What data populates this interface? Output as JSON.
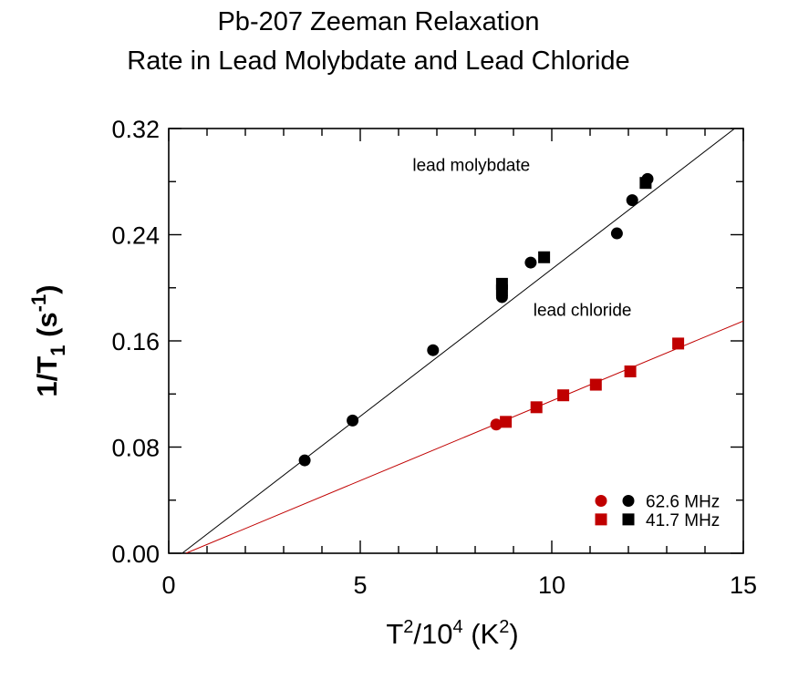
{
  "colors": {
    "molybdate": "#000000",
    "chloride": "#c00000",
    "axis": "#000000"
  },
  "chart_data": {
    "type": "scatter",
    "title_lines": [
      "Pb-207 Zeeman Relaxation",
      "Rate in Lead Molybdate and Lead Chloride"
    ],
    "xlabel": {
      "base": "T",
      "sup": "2",
      "mid": "/10",
      "sup2": "4",
      "tail_open": " (K",
      "sup3": "2",
      "tail_close": ")"
    },
    "ylabel": {
      "base": "1/T",
      "sub": "1",
      "mid": " (s",
      "sup": "-1",
      "tail": ")"
    },
    "xlim": [
      0,
      15
    ],
    "ylim": [
      0,
      0.32
    ],
    "xticks": [
      0,
      5,
      10,
      15
    ],
    "yticks": [
      0.0,
      0.08,
      0.16,
      0.24,
      0.32
    ],
    "xtick_labels": [
      "0",
      "5",
      "10",
      "15"
    ],
    "ytick_labels": [
      "0.00",
      "0.08",
      "0.16",
      "0.24",
      "0.32"
    ],
    "x_minor_step": 1,
    "y_minor_step": 0.04,
    "annotations": [
      {
        "text": "lead molybdate",
        "x": 7.9,
        "y": 0.288
      },
      {
        "text": "lead chloride",
        "x": 10.8,
        "y": 0.179
      }
    ],
    "series": [
      {
        "material": "molybdate",
        "marker": "circle",
        "x": [
          3.55,
          4.8,
          6.9,
          8.7,
          9.45,
          11.7,
          12.1,
          12.5
        ],
        "y": [
          0.07,
          0.1,
          0.153,
          0.193,
          0.219,
          0.241,
          0.266,
          0.282
        ]
      },
      {
        "material": "molybdate",
        "marker": "square",
        "x": [
          8.7,
          8.7,
          9.8,
          12.45
        ],
        "y": [
          0.203,
          0.198,
          0.223,
          0.279
        ]
      },
      {
        "material": "chloride",
        "marker": "circle",
        "x": [
          8.55
        ],
        "y": [
          0.097
        ]
      },
      {
        "material": "chloride",
        "marker": "square",
        "x": [
          8.8,
          9.6,
          10.3,
          11.15,
          12.05,
          13.3
        ],
        "y": [
          0.099,
          0.11,
          0.119,
          0.127,
          0.137,
          0.158
        ]
      }
    ],
    "fit_lines": [
      {
        "material": "molybdate",
        "x": [
          0.35,
          15
        ],
        "y": [
          0.0,
          0.325
        ]
      },
      {
        "material": "chloride",
        "x": [
          0.45,
          15
        ],
        "y": [
          0.0,
          0.175
        ]
      }
    ],
    "legend": {
      "position": "bottom-right",
      "items": [
        {
          "marker": "circle",
          "label": "62.6 MHz"
        },
        {
          "marker": "square",
          "label": "41.7 MHz"
        }
      ]
    }
  }
}
